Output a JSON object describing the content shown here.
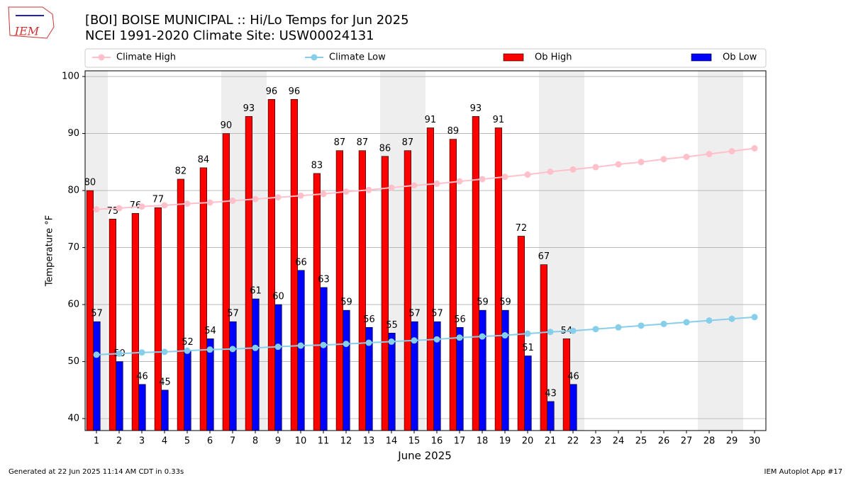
{
  "logo_text": "IEM",
  "footer_left": "Generated at 22 Jun 2025 11:14 AM CDT in 0.33s",
  "footer_right": "IEM Autoplot App #17",
  "chart_data": {
    "type": "bar",
    "title": "[BOI] BOISE MUNICIPAL :: Hi/Lo Temps for Jun 2025",
    "subtitle": "NCEI 1991-2020 Climate Site: USW00024131",
    "x_label": "June 2025",
    "y_label": "Temperature °F",
    "x": [
      1,
      2,
      3,
      4,
      5,
      6,
      7,
      8,
      9,
      10,
      11,
      12,
      13,
      14,
      15,
      16,
      17,
      18,
      19,
      20,
      21,
      22,
      23,
      24,
      25,
      26,
      27,
      28,
      29,
      30
    ],
    "xlim": [
      0.5,
      30.5
    ],
    "xticks": [
      1,
      2,
      3,
      4,
      5,
      6,
      7,
      8,
      9,
      10,
      11,
      12,
      13,
      14,
      15,
      16,
      17,
      18,
      19,
      20,
      21,
      22,
      23,
      24,
      25,
      26,
      27,
      28,
      29,
      30
    ],
    "ylim": [
      37.9,
      101
    ],
    "yticks": [
      40,
      50,
      60,
      70,
      80,
      90,
      100
    ],
    "grid": true,
    "weekend_days": [
      1,
      7,
      8,
      14,
      15,
      21,
      22,
      28,
      29
    ],
    "shade_color": "#eeeeee",
    "series": [
      {
        "name": "Climate High",
        "kind": "line",
        "color": "#ffc0cb",
        "values": [
          76.7,
          76.9,
          77.2,
          77.4,
          77.7,
          77.9,
          78.2,
          78.5,
          78.8,
          79.1,
          79.4,
          79.8,
          80.1,
          80.5,
          80.9,
          81.2,
          81.6,
          82.0,
          82.4,
          82.8,
          83.3,
          83.7,
          84.1,
          84.6,
          85.0,
          85.5,
          85.9,
          86.4,
          86.9,
          87.4
        ]
      },
      {
        "name": "Climate Low",
        "kind": "line",
        "color": "#87ceeb",
        "values": [
          51.2,
          51.4,
          51.6,
          51.7,
          51.9,
          52.1,
          52.2,
          52.4,
          52.6,
          52.8,
          52.9,
          53.1,
          53.3,
          53.5,
          53.7,
          53.9,
          54.2,
          54.4,
          54.6,
          54.9,
          55.2,
          55.4,
          55.7,
          56.0,
          56.3,
          56.6,
          56.9,
          57.2,
          57.5,
          57.8
        ]
      },
      {
        "name": "Ob High",
        "kind": "bar",
        "color": "#ff0000",
        "values": [
          80,
          75,
          76,
          77,
          82,
          84,
          90,
          93,
          96,
          96,
          83,
          87,
          87,
          86,
          87,
          91,
          89,
          93,
          91,
          72,
          67,
          54,
          null,
          null,
          null,
          null,
          null,
          null,
          null,
          null
        ]
      },
      {
        "name": "Ob Low",
        "kind": "bar",
        "color": "#0000ff",
        "values": [
          57,
          50,
          46,
          45,
          52,
          54,
          57,
          61,
          60,
          66,
          63,
          59,
          56,
          55,
          57,
          57,
          56,
          59,
          59,
          51,
          43,
          46,
          null,
          null,
          null,
          null,
          null,
          null,
          null,
          null
        ]
      }
    ]
  }
}
